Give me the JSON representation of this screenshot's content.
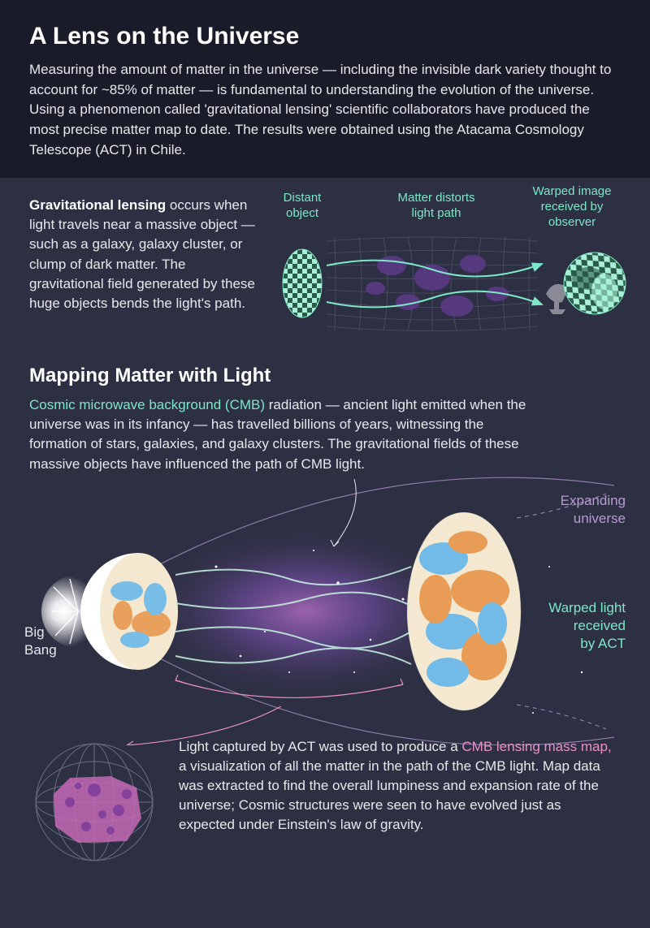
{
  "colors": {
    "header_bg": "#1a1b28",
    "body_bg": "#2d2f42",
    "text_primary": "#ffffff",
    "text_body": "#e8e8ec",
    "accent_green": "#7de8c8",
    "accent_purple": "#b89bd4",
    "accent_pink": "#e892c4",
    "diagram_mesh": "#5b5d7a",
    "diagram_blob": "#5e3a8a",
    "diagram_checker_light": "#a8f0d8",
    "diagram_checker_dark": "#2a5a48",
    "telescope_gray": "#8a8a96",
    "cmb_orange": "#e89850",
    "cmb_blue": "#6bb8e8",
    "cmb_cream": "#f4e8d0",
    "nebula_purple": "#6a4a9a",
    "nebula_pink": "#a868b8",
    "globe_line": "#6a6c84",
    "globe_fill": "#c468b4"
  },
  "fonts": {
    "title_size": 30,
    "h2_size": 24,
    "body_size": 17,
    "diag_label_size": 15
  },
  "header": {
    "title": "A Lens on the Universe",
    "intro": "Measuring the amount of matter in the universe — including the invisible dark variety thought to account for ~85% of matter — is fundamental to understanding the evolution of the universe. Using a phenomenon called 'gravitational lensing' scientific collaborators have produced the most precise matter map to date. The results were obtained using the Atacama Cosmology Telescope (ACT) in Chile."
  },
  "lensing": {
    "term": "Gravitational lensing",
    "text": " occurs when light travels near a massive object — such as a galaxy, galaxy cluster, or clump of dark matter. The gravitational field generated by these huge objects bends the light's path.",
    "labels": {
      "distant": "Distant\nobject",
      "distorts": "Matter distorts\nlight path",
      "warped": "Warped image\nreceived by\nobserver"
    }
  },
  "mapping": {
    "heading": "Mapping Matter with Light",
    "cmb_term": "Cosmic microwave background (CMB)",
    "text": " radiation — ancient light emitted when the universe was in its infancy — has travelled billions of years, witnessing the formation of stars, galaxies, and galaxy clusters. The gravitational fields of these massive objects have influenced the path of CMB light.",
    "labels": {
      "bigbang": "Big\nBang",
      "expanding": "Expanding\nuniverse",
      "warped_act": "Warped light\nreceived\nby ACT"
    }
  },
  "bottom": {
    "text_pre": "Light captured by ACT was used to produce a ",
    "pink_term": "CMB lensing mass map,",
    "text_post": " a visualization of all the matter in the path of the CMB light. Map data was extracted to find the overall lumpiness and expansion rate of the universe; Cosmic structures were seen to have evolved just as expected under Einstein's law of gravity."
  }
}
